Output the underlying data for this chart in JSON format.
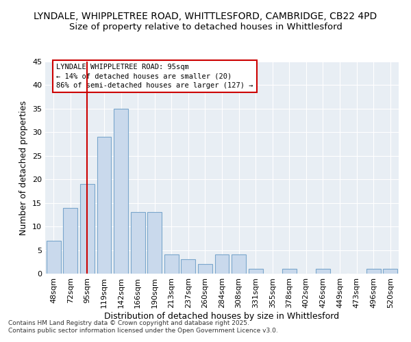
{
  "title_line1": "LYNDALE, WHIPPLETREE ROAD, WHITTLESFORD, CAMBRIDGE, CB22 4PD",
  "title_line2": "Size of property relative to detached houses in Whittlesford",
  "xlabel": "Distribution of detached houses by size in Whittlesford",
  "ylabel": "Number of detached properties",
  "categories": [
    "48sqm",
    "72sqm",
    "95sqm",
    "119sqm",
    "142sqm",
    "166sqm",
    "190sqm",
    "213sqm",
    "237sqm",
    "260sqm",
    "284sqm",
    "308sqm",
    "331sqm",
    "355sqm",
    "378sqm",
    "402sqm",
    "426sqm",
    "449sqm",
    "473sqm",
    "496sqm",
    "520sqm"
  ],
  "values": [
    7,
    14,
    19,
    29,
    35,
    13,
    13,
    4,
    3,
    2,
    4,
    4,
    1,
    0,
    1,
    0,
    1,
    0,
    0,
    1,
    1
  ],
  "bar_color": "#c9d9ec",
  "bar_edge_color": "#7aa6cc",
  "vline_x": 2,
  "vline_color": "#cc0000",
  "annotation_text": "LYNDALE WHIPPLETREE ROAD: 95sqm\n← 14% of detached houses are smaller (20)\n86% of semi-detached houses are larger (127) →",
  "annotation_box_color": "#ffffff",
  "annotation_box_edge": "#cc0000",
  "ylim": [
    0,
    45
  ],
  "yticks": [
    0,
    5,
    10,
    15,
    20,
    25,
    30,
    35,
    40,
    45
  ],
  "background_color": "#e8eef4",
  "footer": "Contains HM Land Registry data © Crown copyright and database right 2025.\nContains public sector information licensed under the Open Government Licence v3.0.",
  "title_fontsize": 10,
  "subtitle_fontsize": 9.5,
  "tick_fontsize": 8,
  "label_fontsize": 9,
  "annotation_fontsize": 7.5
}
